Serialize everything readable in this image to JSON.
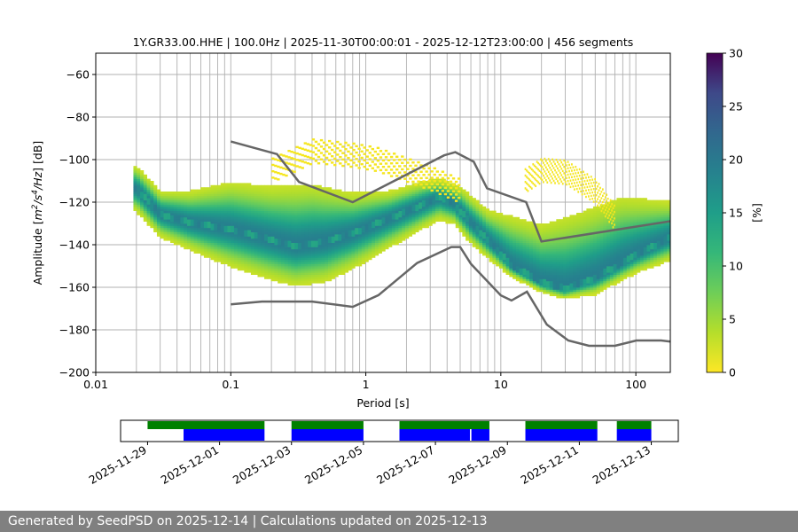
{
  "chart_data": {
    "type": "heatmap",
    "title": "1Y.GR33.00.HHE | 100.0Hz | 2025-11-30T00:00:01 - 2025-12-12T23:00:00 | 456 segments",
    "xlabel": "Period [s]",
    "ylabel_parts": [
      "Amplitude [",
      "m",
      "2",
      "/s",
      "4",
      "/Hz",
      "] [dB]"
    ],
    "x_scale": "log",
    "xlim": [
      0.01,
      180
    ],
    "ylim": [
      -200,
      -50
    ],
    "x_ticks": [
      {
        "value": 0.01,
        "label": "0.01"
      },
      {
        "value": 0.1,
        "label": "0.1"
      },
      {
        "value": 1,
        "label": "1"
      },
      {
        "value": 10,
        "label": "10"
      },
      {
        "value": 100,
        "label": "100"
      }
    ],
    "y_ticks": [
      -60,
      -80,
      -100,
      -120,
      -140,
      -160,
      -180,
      -200
    ],
    "grid": true,
    "colorbar": {
      "label": "[%]",
      "min": 0,
      "max": 30,
      "ticks": [
        0,
        5,
        10,
        15,
        20,
        25,
        30
      ],
      "colormap": "viridis_r"
    },
    "psd_mode": [
      [
        0.02,
        -114
      ],
      [
        0.03,
        -126
      ],
      [
        0.05,
        -130
      ],
      [
        0.1,
        -133
      ],
      [
        0.2,
        -138
      ],
      [
        0.3,
        -141
      ],
      [
        0.5,
        -139
      ],
      [
        0.8,
        -135
      ],
      [
        1.5,
        -128
      ],
      [
        2.5,
        -122
      ],
      [
        3.5,
        -118
      ],
      [
        4.5,
        -121
      ],
      [
        6,
        -130
      ],
      [
        8,
        -138
      ],
      [
        12,
        -150
      ],
      [
        20,
        -158
      ],
      [
        30,
        -161
      ],
      [
        50,
        -156
      ],
      [
        100,
        -145
      ],
      [
        180,
        -137
      ]
    ],
    "psd_upper": [
      [
        0.02,
        -104
      ],
      [
        0.03,
        -116
      ],
      [
        0.05,
        -116
      ],
      [
        0.1,
        -112
      ],
      [
        0.2,
        -114
      ],
      [
        0.4,
        -113
      ],
      [
        0.8,
        -117
      ],
      [
        1.5,
        -116
      ],
      [
        2.5,
        -112
      ],
      [
        3.5,
        -110
      ],
      [
        5,
        -114
      ],
      [
        8,
        -125
      ],
      [
        12,
        -128
      ],
      [
        20,
        -132
      ],
      [
        40,
        -126
      ],
      [
        80,
        -119
      ],
      [
        180,
        -121
      ]
    ],
    "psd_lower": [
      [
        0.02,
        -124
      ],
      [
        0.03,
        -136
      ],
      [
        0.05,
        -142
      ],
      [
        0.1,
        -150
      ],
      [
        0.2,
        -156
      ],
      [
        0.3,
        -159
      ],
      [
        0.5,
        -157
      ],
      [
        0.8,
        -151
      ],
      [
        1.5,
        -141
      ],
      [
        2.5,
        -133
      ],
      [
        3.5,
        -128
      ],
      [
        4.5,
        -130
      ],
      [
        6,
        -139
      ],
      [
        8,
        -146
      ],
      [
        12,
        -155
      ],
      [
        20,
        -162
      ],
      [
        30,
        -165
      ],
      [
        50,
        -163
      ],
      [
        100,
        -153
      ],
      [
        180,
        -147
      ]
    ],
    "psd_outlier_top": [
      [
        0.2,
        -100
      ],
      [
        0.4,
        -91
      ],
      [
        0.8,
        -93
      ],
      [
        1.2,
        -95
      ],
      [
        2,
        -100
      ],
      [
        3,
        -104
      ],
      [
        5,
        -110
      ]
    ],
    "psd_outlier_top2": [
      [
        15,
        -105
      ],
      [
        20,
        -100
      ],
      [
        30,
        -101
      ],
      [
        50,
        -110
      ],
      [
        70,
        -123
      ]
    ],
    "nhnm": [
      [
        0.1,
        -91.5
      ],
      [
        0.22,
        -97.4
      ],
      [
        0.32,
        -110.5
      ],
      [
        0.8,
        -120
      ],
      [
        3.8,
        -98
      ],
      [
        4.6,
        -96.5
      ],
      [
        6.3,
        -101
      ],
      [
        7.9,
        -113.5
      ],
      [
        15.4,
        -120
      ],
      [
        20,
        -138.5
      ],
      [
        354.8,
        -126
      ]
    ],
    "nlnm": [
      [
        0.1,
        -168
      ],
      [
        0.17,
        -166.7
      ],
      [
        0.4,
        -166.7
      ],
      [
        0.8,
        -169.2
      ],
      [
        1.24,
        -163.7
      ],
      [
        2.4,
        -148.6
      ],
      [
        4.3,
        -141.1
      ],
      [
        5,
        -141.1
      ],
      [
        6,
        -149
      ],
      [
        10,
        -163.8
      ],
      [
        12,
        -166.2
      ],
      [
        15.6,
        -162.1
      ],
      [
        21.9,
        -177.5
      ],
      [
        31.6,
        -185
      ],
      [
        45,
        -187.5
      ],
      [
        70,
        -187.5
      ],
      [
        101,
        -185
      ],
      [
        154,
        -185
      ],
      [
        328,
        -187.5
      ]
    ],
    "availability": {
      "x_tick_labels": [
        "2025-11-29",
        "2025-12-01",
        "2025-12-03",
        "2025-12-05",
        "2025-12-07",
        "2025-12-09",
        "2025-12-11",
        "2025-12-13"
      ],
      "x_tick_dates": [
        "2025-11-29",
        "2025-12-01",
        "2025-12-03",
        "2025-12-05",
        "2025-12-07",
        "2025-12-09",
        "2025-12-11",
        "2025-12-13"
      ],
      "xlim": [
        "2025-11-28T06:00",
        "2025-12-13T18:00"
      ],
      "green_color": "#008000",
      "blue_color": "#0000ff",
      "green": [
        [
          "2025-11-29T00:00",
          "2025-12-02T06:00"
        ],
        [
          "2025-12-03T00:00",
          "2025-12-05T00:00"
        ],
        [
          "2025-12-06T00:00",
          "2025-12-08T12:00"
        ],
        [
          "2025-12-09T12:00",
          "2025-12-11T12:00"
        ],
        [
          "2025-12-12T01:00",
          "2025-12-13T00:00"
        ]
      ],
      "blue": [
        [
          "2025-11-30T00:00",
          "2025-12-02T06:00"
        ],
        [
          "2025-12-03T00:00",
          "2025-12-05T00:00"
        ],
        [
          "2025-12-06T00:00",
          "2025-12-07T23:00"
        ],
        [
          "2025-12-08T00:00",
          "2025-12-08T12:00"
        ],
        [
          "2025-12-09T12:00",
          "2025-12-11T12:00"
        ],
        [
          "2025-12-12T01:00",
          "2025-12-13T00:00"
        ]
      ]
    }
  },
  "footer": {
    "text": "Generated by SeedPSD on 2025-12-14 | Calculations updated on 2025-12-13"
  },
  "colors": {
    "noise_model": "#666666",
    "grid": "#b0b0b0",
    "footer_bg": "#808080"
  }
}
